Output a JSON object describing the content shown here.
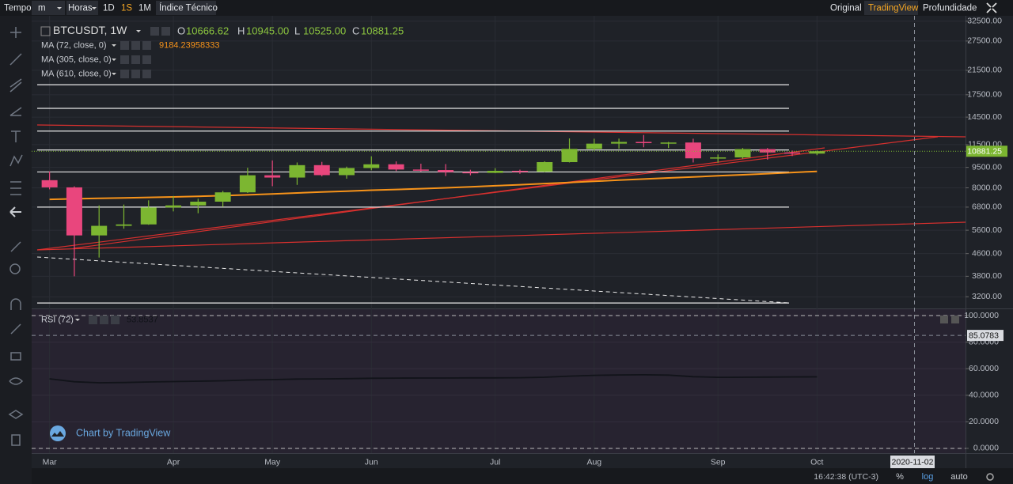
{
  "toolbar": {
    "left": [
      "Tempo",
      "m",
      "Horas",
      "1D",
      "1S",
      "1M",
      "Índice Técnico"
    ],
    "right": [
      "Original",
      "TradingView",
      "Profundidade"
    ],
    "active_interval": "1S",
    "active_view": "TradingView"
  },
  "footer": {
    "time": "16:42:38 (UTC-3)",
    "buttons": [
      "%",
      "log",
      "auto"
    ],
    "active_scale": "log"
  },
  "watermark": "Chart by TradingView",
  "chart_data": [
    {
      "type": "candlestick",
      "symbol": "BTCUSDT, 1W",
      "log": true,
      "up_color": "#7cb631",
      "down_color": "#e9467d",
      "last_labels": [
        {
          "name": "O",
          "label": "10666.62"
        },
        {
          "name": "H",
          "label": "10945.00"
        },
        {
          "name": "L",
          "label": "10525.00"
        },
        {
          "name": "C",
          "label": "10881.25"
        }
      ],
      "open": [
        8530,
        8030,
        5360,
        5810,
        5880,
        6780,
        6900,
        7120,
        7700,
        8890,
        8720,
        9680,
        8900,
        9450,
        9750,
        9330,
        9290,
        9130,
        9070,
        9230,
        9160,
        9930,
        11100,
        11600,
        11770,
        11650,
        11710,
        10250,
        10330,
        11080,
        10770,
        10666.62
      ],
      "high": [
        9180,
        8100,
        6900,
        6950,
        7200,
        7470,
        7300,
        7790,
        9470,
        10070,
        9900,
        9950,
        9560,
        10430,
        9990,
        9800,
        9770,
        9310,
        9440,
        9320,
        10000,
        12120,
        12090,
        12100,
        12480,
        11770,
        12090,
        10590,
        11180,
        11180,
        10950,
        10945
      ],
      "low": [
        7900,
        3800,
        4450,
        5670,
        5860,
        6560,
        6460,
        6810,
        7660,
        8110,
        8200,
        8810,
        8640,
        9270,
        9210,
        9170,
        8830,
        8890,
        9050,
        9000,
        9130,
        9900,
        10950,
        11120,
        11250,
        11180,
        9900,
        9880,
        10210,
        10140,
        10450,
        10525
      ],
      "close": [
        8030,
        5360,
        5810,
        5880,
        6780,
        6900,
        7120,
        7700,
        8890,
        8720,
        9680,
        8900,
        9450,
        9750,
        9330,
        9290,
        9130,
        9070,
        9230,
        9160,
        9930,
        11100,
        11600,
        11770,
        11650,
        11710,
        10250,
        10330,
        11080,
        10770,
        10670,
        10881.25
      ],
      "moving_averages": [
        {
          "name": "MA (72, close, 0)",
          "color": "#f7931a",
          "values": [
            7260,
            7290,
            7320,
            7350,
            7380,
            7410,
            7450,
            7490,
            7540,
            7600,
            7660,
            7720,
            7780,
            7840,
            7890,
            7940,
            8000,
            8070,
            8140,
            8210,
            8290,
            8370,
            8450,
            8530,
            8610,
            8690,
            8770,
            8850,
            8930,
            9010,
            9100,
            9184.23958333
          ]
        },
        {
          "name": "MA (305, close, 0)"
        },
        {
          "name": "MA (610, close, 0)"
        }
      ],
      "hlines": [
        19040,
        15610,
        12890,
        11000,
        9140,
        6800,
        3035
      ],
      "ylim": [
        2900,
        34000
      ],
      "yticks": [
        {
          "value": 3200,
          "label": "3200.00"
        },
        {
          "value": 3800,
          "label": "3800.00"
        },
        {
          "value": 4600,
          "label": "4600.00"
        },
        {
          "value": 5600,
          "label": "5600.00"
        },
        {
          "value": 6800,
          "label": "6800.00"
        },
        {
          "value": 8000,
          "label": "8000.00"
        },
        {
          "value": 9500,
          "label": "9500.00"
        },
        {
          "value": 11500,
          "label": "11500.00"
        },
        {
          "value": 14500,
          "label": "14500.00"
        },
        {
          "value": 17500,
          "label": "17500.00"
        },
        {
          "value": 21500,
          "label": "21500.00"
        },
        {
          "value": 27500,
          "label": "27500.00"
        },
        {
          "value": 32500,
          "label": "32500.00"
        }
      ],
      "xlim": [
        -0.5,
        37
      ],
      "xticks": [
        {
          "value": 0,
          "label": "Mar"
        },
        {
          "value": 5,
          "label": "Apr"
        },
        {
          "value": 9,
          "label": "May"
        },
        {
          "value": 13,
          "label": "Jun"
        },
        {
          "value": 18,
          "label": "Jul"
        },
        {
          "value": 22,
          "label": "Aug"
        },
        {
          "value": 27,
          "label": "Sep"
        },
        {
          "value": 31,
          "label": "Oct"
        }
      ]
    },
    {
      "type": "line",
      "name": "RSI (72)",
      "color": "#111319",
      "values": [
        52.4,
        50.2,
        49.4,
        49.6,
        50.0,
        50.3,
        50.6,
        50.9,
        51.5,
        51.8,
        52.2,
        52.3,
        52.5,
        52.8,
        52.9,
        53.0,
        53.0,
        53.1,
        53.1,
        53.2,
        53.6,
        54.4,
        55.0,
        55.3,
        55.4,
        55.2,
        54.0,
        53.5,
        53.6,
        53.7,
        53.8,
        53.8537
      ],
      "ylim": [
        -3.6,
        104.8
      ],
      "yticks": [
        {
          "value": 0,
          "label": "0.0000"
        },
        {
          "value": 20,
          "label": "20.0000"
        },
        {
          "value": 40,
          "label": "40.0000"
        },
        {
          "value": 60,
          "label": "60.0000"
        },
        {
          "value": 80,
          "label": "80.0000"
        },
        {
          "value": 100,
          "label": "100.0000"
        }
      ],
      "bands": [
        0,
        100
      ],
      "crosshair": {
        "date": "2020-11-02",
        "value": 85.0783
      }
    }
  ]
}
